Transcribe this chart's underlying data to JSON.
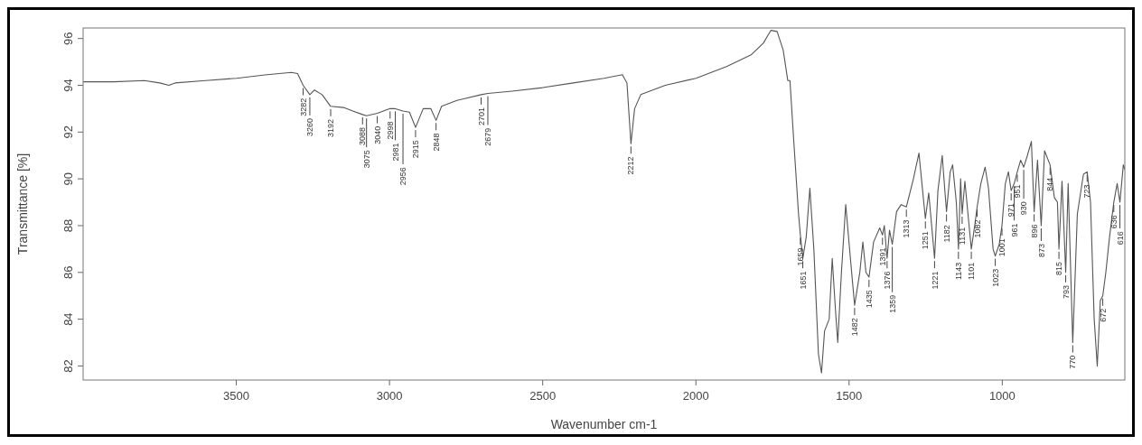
{
  "chart_data": {
    "type": "line",
    "xlabel": "Wavenumber cm-1",
    "ylabel": "Transmittance [%]",
    "color": "#555555",
    "marker": "none",
    "line_style": "solid",
    "grid": false,
    "xlim": [
      4000,
      600
    ],
    "xticks": [
      3500,
      3000,
      2500,
      2000,
      1500,
      1000
    ],
    "ylim": [
      81.4,
      96.45
    ],
    "yticks": [
      82,
      84,
      86,
      88,
      90,
      92,
      94,
      96
    ],
    "x": [
      4000,
      3900,
      3800,
      3750,
      3720,
      3700,
      3600,
      3500,
      3400,
      3320,
      3300,
      3282,
      3260,
      3245,
      3220,
      3192,
      3150,
      3120,
      3088,
      3075,
      3040,
      3000,
      2998,
      2981,
      2956,
      2935,
      2915,
      2890,
      2865,
      2848,
      2830,
      2780,
      2701,
      2679,
      2600,
      2500,
      2400,
      2300,
      2240,
      2225,
      2212,
      2200,
      2180,
      2100,
      2000,
      1900,
      1820,
      1780,
      1755,
      1735,
      1715,
      1700,
      1693,
      1680,
      1665,
      1659,
      1651,
      1640,
      1628,
      1615,
      1600,
      1590,
      1580,
      1565,
      1555,
      1545,
      1537,
      1525,
      1511,
      1495,
      1482,
      1465,
      1455,
      1445,
      1435,
      1420,
      1400,
      1391,
      1385,
      1376,
      1368,
      1359,
      1345,
      1330,
      1313,
      1290,
      1272,
      1260,
      1251,
      1240,
      1221,
      1210,
      1196,
      1188,
      1182,
      1170,
      1162,
      1150,
      1143,
      1136,
      1131,
      1122,
      1112,
      1101,
      1090,
      1082,
      1070,
      1056,
      1045,
      1030,
      1023,
      1010,
      1001,
      990,
      980,
      971,
      961,
      951,
      940,
      930,
      918,
      905,
      896,
      885,
      873,
      862,
      844,
      830,
      820,
      815,
      805,
      793,
      785,
      770,
      755,
      735,
      723,
      712,
      700,
      690,
      680,
      672,
      662,
      650,
      636,
      625,
      616,
      605,
      600
    ],
    "values": [
      94.15,
      94.15,
      94.2,
      94.1,
      94.0,
      94.1,
      94.2,
      94.3,
      94.45,
      94.55,
      94.5,
      94.0,
      93.6,
      93.8,
      93.6,
      93.1,
      93.05,
      92.9,
      92.75,
      92.7,
      92.8,
      93.0,
      93.0,
      93.0,
      92.9,
      92.85,
      92.2,
      93.0,
      93.0,
      92.5,
      93.1,
      93.35,
      93.6,
      93.65,
      93.75,
      93.9,
      94.1,
      94.3,
      94.45,
      94.1,
      91.5,
      93.0,
      93.6,
      94.0,
      94.3,
      94.8,
      95.3,
      95.8,
      96.35,
      96.3,
      95.5,
      94.2,
      94.2,
      91.5,
      88.5,
      87.6,
      86.6,
      87.5,
      89.6,
      87.0,
      82.5,
      81.7,
      83.5,
      84.0,
      86.6,
      84.5,
      83.0,
      86.0,
      88.9,
      86.5,
      84.6,
      86.0,
      87.3,
      86.0,
      85.8,
      87.3,
      87.9,
      87.6,
      88.0,
      86.6,
      87.8,
      87.2,
      88.6,
      88.9,
      88.8,
      90.0,
      91.1,
      89.5,
      88.3,
      89.4,
      86.6,
      89.5,
      91.0,
      89.6,
      88.6,
      90.3,
      90.6,
      89.0,
      87.0,
      90.0,
      88.5,
      89.9,
      88.5,
      87.0,
      88.0,
      88.8,
      89.8,
      90.5,
      89.6,
      87.0,
      86.7,
      87.2,
      88.0,
      89.8,
      90.3,
      89.5,
      89.8,
      90.3,
      90.8,
      90.5,
      91.0,
      91.6,
      88.6,
      90.8,
      88.0,
      91.2,
      90.6,
      89.2,
      89.0,
      87.0,
      89.9,
      86.0,
      89.8,
      83.0,
      88.5,
      90.2,
      90.3,
      89.0,
      84.0,
      82.0,
      84.8,
      85.0,
      86.0,
      87.5,
      89.0,
      89.8,
      89.0,
      90.6,
      90.4
    ],
    "annotations": [
      {
        "text": "3282",
        "x": 3282,
        "y": 94.0
      },
      {
        "text": "3260",
        "x": 3260,
        "y": 93.6
      },
      {
        "text": "3192",
        "x": 3192,
        "y": 93.1
      },
      {
        "text": "3088",
        "x": 3088,
        "y": 92.75
      },
      {
        "text": "3075",
        "x": 3075,
        "y": 92.7
      },
      {
        "text": "3040",
        "x": 3040,
        "y": 92.8
      },
      {
        "text": "2998",
        "x": 2998,
        "y": 93.0
      },
      {
        "text": "2981",
        "x": 2981,
        "y": 93.0
      },
      {
        "text": "2956",
        "x": 2956,
        "y": 92.9
      },
      {
        "text": "2915",
        "x": 2915,
        "y": 92.2
      },
      {
        "text": "2848",
        "x": 2848,
        "y": 92.5
      },
      {
        "text": "2701",
        "x": 2701,
        "y": 93.6
      },
      {
        "text": "2679",
        "x": 2679,
        "y": 93.65
      },
      {
        "text": "2212",
        "x": 2212,
        "y": 91.5
      },
      {
        "text": "1659",
        "x": 1659,
        "y": 87.6
      },
      {
        "text": "1651",
        "x": 1651,
        "y": 86.6
      },
      {
        "text": "1482",
        "x": 1482,
        "y": 84.6
      },
      {
        "text": "1435",
        "x": 1435,
        "y": 85.8
      },
      {
        "text": "1391",
        "x": 1391,
        "y": 87.6
      },
      {
        "text": "1376",
        "x": 1376,
        "y": 86.6
      },
      {
        "text": "1359",
        "x": 1359,
        "y": 87.2
      },
      {
        "text": "1313",
        "x": 1313,
        "y": 88.8
      },
      {
        "text": "1251",
        "x": 1251,
        "y": 88.3
      },
      {
        "text": "1221",
        "x": 1221,
        "y": 86.6
      },
      {
        "text": "1182",
        "x": 1182,
        "y": 88.6
      },
      {
        "text": "1143",
        "x": 1143,
        "y": 87.0
      },
      {
        "text": "1131",
        "x": 1131,
        "y": 88.5
      },
      {
        "text": "1101",
        "x": 1101,
        "y": 87.0
      },
      {
        "text": "1082",
        "x": 1082,
        "y": 88.8
      },
      {
        "text": "1023",
        "x": 1023,
        "y": 86.7
      },
      {
        "text": "1001",
        "x": 1001,
        "y": 88.0
      },
      {
        "text": "971",
        "x": 971,
        "y": 89.5
      },
      {
        "text": "961",
        "x": 961,
        "y": 89.8
      },
      {
        "text": "951",
        "x": 951,
        "y": 90.3
      },
      {
        "text": "930",
        "x": 930,
        "y": 90.5
      },
      {
        "text": "896",
        "x": 896,
        "y": 88.6
      },
      {
        "text": "873",
        "x": 873,
        "y": 88.0
      },
      {
        "text": "844",
        "x": 844,
        "y": 90.6
      },
      {
        "text": "815",
        "x": 815,
        "y": 87.0
      },
      {
        "text": "793",
        "x": 793,
        "y": 86.0
      },
      {
        "text": "770",
        "x": 770,
        "y": 83.0
      },
      {
        "text": "723",
        "x": 723,
        "y": 90.3
      },
      {
        "text": "672",
        "x": 672,
        "y": 85.0
      },
      {
        "text": "636",
        "x": 636,
        "y": 89.0
      },
      {
        "text": "616",
        "x": 616,
        "y": 89.0
      }
    ]
  }
}
